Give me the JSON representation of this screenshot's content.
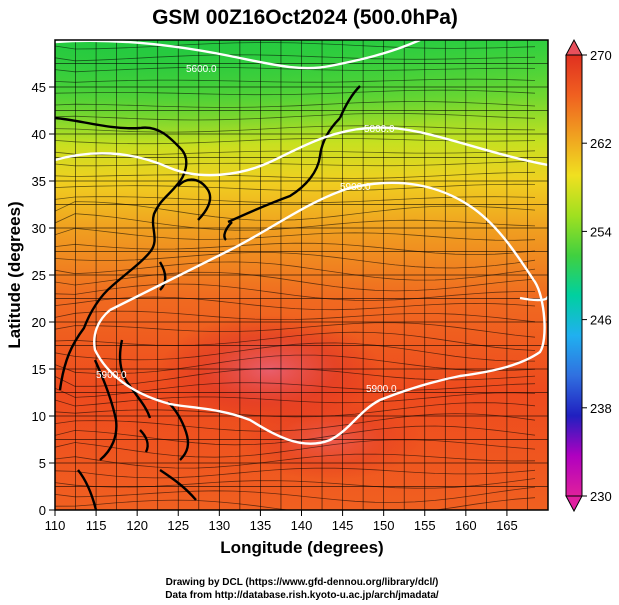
{
  "title": "GSM 00Z16Oct2024 (500.0hPa)",
  "x_axis": {
    "label": "Longitude (degrees)",
    "range": [
      110,
      170
    ],
    "ticks": [
      "110",
      "115",
      "120",
      "125",
      "130",
      "135",
      "140",
      "145",
      "150",
      "155",
      "160",
      "165"
    ]
  },
  "y_axis": {
    "label": "Latitude  (degrees)",
    "range": [
      0,
      50
    ],
    "ticks": [
      "0",
      "5",
      "10",
      "15",
      "20",
      "25",
      "30",
      "35",
      "40",
      "45"
    ]
  },
  "colorbar": {
    "min": 230,
    "max": 270,
    "ticks": [
      "270",
      "262",
      "254",
      "246",
      "238",
      "230"
    ],
    "colors": [
      "#e0209c",
      "#b000c0",
      "#2020c0",
      "#3070e0",
      "#20b0f0",
      "#00d0a0",
      "#40d040",
      "#a0e020",
      "#f0e020",
      "#f0a020",
      "#f06020",
      "#e03020"
    ]
  },
  "contours": [
    {
      "label": "5600.0"
    },
    {
      "label": "5800.0"
    },
    {
      "label": "5900.0"
    },
    {
      "label": "5900.0"
    },
    {
      "label": "5900.0"
    }
  ],
  "credits": {
    "line1": "Drawing by DCL (https://www.gfd-dennou.org/library/dcl/)",
    "line2": "Data from http://database.rish.kyoto-u.ac.jp/arch/jmadata/"
  }
}
